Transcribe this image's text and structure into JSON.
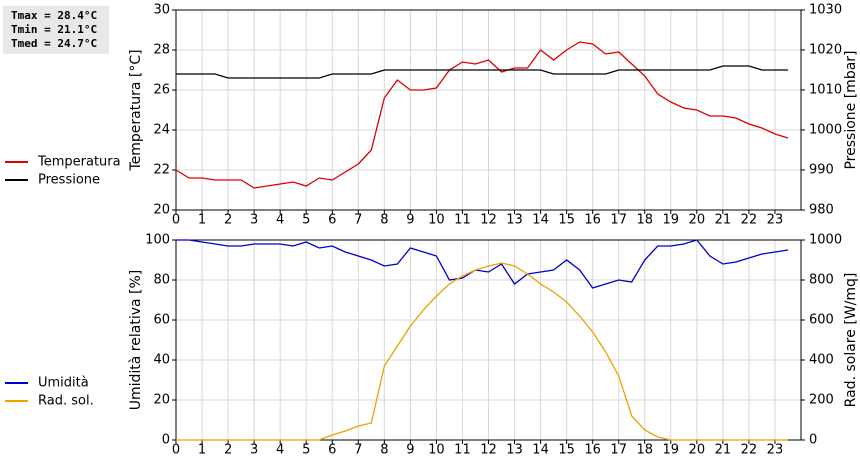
{
  "chart_data": [
    {
      "type": "line",
      "annotations": [
        "Tmax = 28.4°C",
        "Tmin = 21.1°C",
        "Tmed = 24.7°C"
      ],
      "x": [
        0,
        0.5,
        1,
        1.5,
        2,
        2.5,
        3,
        3.5,
        4,
        4.5,
        5,
        5.5,
        6,
        6.5,
        7,
        7.5,
        8,
        8.5,
        9,
        9.5,
        10,
        10.5,
        11,
        11.5,
        12,
        12.5,
        13,
        13.5,
        14,
        14.5,
        15,
        15.5,
        16,
        16.5,
        17,
        17.5,
        18,
        18.5,
        19,
        19.5,
        20,
        20.5,
        21,
        21.5,
        22,
        22.5,
        23,
        23.5
      ],
      "xlim": [
        0,
        24
      ],
      "xticks": [
        0,
        1,
        2,
        3,
        4,
        5,
        6,
        7,
        8,
        9,
        10,
        11,
        12,
        13,
        14,
        15,
        16,
        17,
        18,
        19,
        20,
        21,
        22,
        23
      ],
      "ylabel": "Temperatura [°C]",
      "ylim": [
        20,
        30
      ],
      "yticks": [
        20,
        22,
        24,
        26,
        28,
        30
      ],
      "y2label": "Pressione [mbar]",
      "y2lim": [
        980,
        1030
      ],
      "y2ticks": [
        980,
        990,
        1000,
        1010,
        1020,
        1030
      ],
      "grid": true,
      "legend": "left",
      "series": [
        {
          "name": "Temperatura",
          "color": "#dd0000",
          "values": [
            22.0,
            21.6,
            21.6,
            21.5,
            21.5,
            21.5,
            21.1,
            21.2,
            21.3,
            21.4,
            21.2,
            21.6,
            21.5,
            21.9,
            22.3,
            23.0,
            25.6,
            26.5,
            26.0,
            26.0,
            26.1,
            27.0,
            27.4,
            27.3,
            27.5,
            26.9,
            27.1,
            27.1,
            28.0,
            27.5,
            28.0,
            28.4,
            28.3,
            27.8,
            27.9,
            27.3,
            26.7,
            25.8,
            25.4,
            25.1,
            25.0,
            24.7,
            24.7,
            24.6,
            24.3,
            24.1,
            23.8,
            23.6
          ]
        },
        {
          "name": "Pressione",
          "color": "#000000",
          "axis": "y2",
          "values": [
            1014,
            1014,
            1014,
            1014,
            1013,
            1013,
            1013,
            1013,
            1013,
            1013,
            1013,
            1013,
            1014,
            1014,
            1014,
            1014,
            1015,
            1015,
            1015,
            1015,
            1015,
            1015,
            1015,
            1015,
            1015,
            1015,
            1015,
            1015,
            1015,
            1014,
            1014,
            1014,
            1014,
            1014,
            1015,
            1015,
            1015,
            1015,
            1015,
            1015,
            1015,
            1015,
            1016,
            1016,
            1016,
            1015,
            1015,
            1015
          ]
        }
      ]
    },
    {
      "type": "line",
      "x": [
        0,
        0.5,
        1,
        1.5,
        2,
        2.5,
        3,
        3.5,
        4,
        4.5,
        5,
        5.5,
        6,
        6.5,
        7,
        7.5,
        8,
        8.5,
        9,
        9.5,
        10,
        10.5,
        11,
        11.5,
        12,
        12.5,
        13,
        13.5,
        14,
        14.5,
        15,
        15.5,
        16,
        16.5,
        17,
        17.5,
        18,
        18.5,
        19,
        19.5,
        20,
        20.5,
        21,
        21.5,
        22,
        22.5,
        23,
        23.5
      ],
      "xlim": [
        0,
        24
      ],
      "xticks": [
        0,
        1,
        2,
        3,
        4,
        5,
        6,
        7,
        8,
        9,
        10,
        11,
        12,
        13,
        14,
        15,
        16,
        17,
        18,
        19,
        20,
        21,
        22,
        23
      ],
      "ylabel": "Umidità relativa [%]",
      "ylim": [
        0,
        100
      ],
      "yticks": [
        0,
        20,
        40,
        60,
        80,
        100
      ],
      "y2label": "Rad. solare [W/mq]",
      "y2lim": [
        0,
        1000
      ],
      "y2ticks": [
        0,
        200,
        400,
        600,
        800,
        1000
      ],
      "grid": true,
      "legend": "left",
      "series": [
        {
          "name": "Umidità",
          "color": "#0000cc",
          "values": [
            100,
            100,
            99,
            98,
            97,
            97,
            98,
            98,
            98,
            97,
            99,
            96,
            97,
            94,
            92,
            90,
            87,
            88,
            96,
            94,
            92,
            80,
            81,
            85,
            84,
            88,
            78,
            83,
            84,
            85,
            90,
            85,
            76,
            78,
            80,
            79,
            90,
            97,
            97,
            98,
            100,
            92,
            88,
            89,
            91,
            93,
            94,
            95
          ]
        },
        {
          "name": "Rad. sol.",
          "color": "#f0a000",
          "axis": "y2",
          "values": [
            0,
            0,
            0,
            0,
            0,
            0,
            0,
            0,
            0,
            0,
            0,
            0,
            25,
            45,
            70,
            85,
            370,
            470,
            570,
            650,
            720,
            780,
            820,
            850,
            870,
            885,
            870,
            830,
            780,
            740,
            690,
            620,
            540,
            440,
            320,
            120,
            50,
            15,
            0,
            0,
            0,
            0,
            0,
            0,
            0,
            0,
            0,
            0
          ]
        }
      ]
    }
  ]
}
